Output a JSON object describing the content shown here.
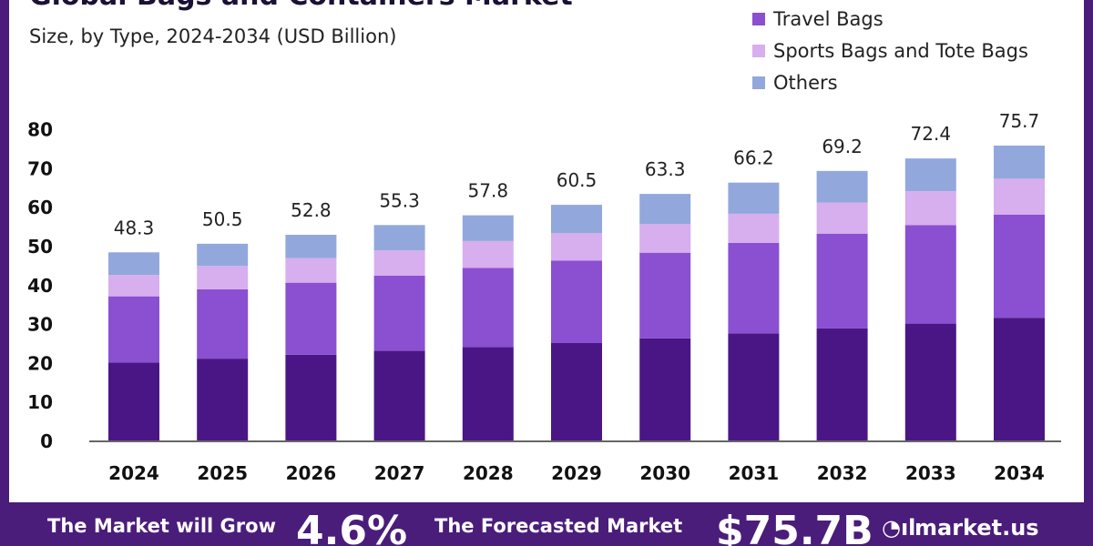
{
  "header": {
    "title": "Global Bags and Containers Market",
    "subtitle": "Size, by Type, 2024-2034 (USD Billion)"
  },
  "footer": {
    "grow_text": "The Market will Grow",
    "cagr": "4.6%",
    "forecast_text": "The Forecasted Market",
    "forecast_value": "$75.7B",
    "logo_icon": "market-us-logo-icon",
    "brand": "market.us"
  },
  "colors": {
    "background": "#ffffff",
    "frame": "#4a1d7a",
    "segment_1": "#4a1685",
    "segment_2": "#8b4fd1",
    "segment_3": "#d7aeee",
    "segment_4": "#92a8dc"
  },
  "chart_data": {
    "type": "bar",
    "stacked": true,
    "categories": [
      "2024",
      "2025",
      "2026",
      "2027",
      "2028",
      "2029",
      "2030",
      "2031",
      "2032",
      "2033",
      "2034"
    ],
    "series": [
      {
        "name": "",
        "values": [
          20.0,
          21.0,
          22.0,
          23.0,
          24.0,
          25.0,
          26.2,
          27.5,
          28.8,
          30.0,
          31.5
        ]
      },
      {
        "name": "Travel Bags",
        "values": [
          17.0,
          17.8,
          18.5,
          19.3,
          20.3,
          21.2,
          22.0,
          23.2,
          24.3,
          25.3,
          26.5
        ]
      },
      {
        "name": "Sports Bags and Tote Bags",
        "values": [
          5.5,
          6.0,
          6.3,
          6.5,
          6.9,
          7.0,
          7.4,
          7.5,
          8.0,
          8.7,
          9.2
        ]
      },
      {
        "name": "Others",
        "values": [
          5.8,
          5.7,
          6.0,
          6.5,
          6.6,
          7.3,
          7.7,
          8.0,
          8.1,
          8.4,
          8.5
        ]
      }
    ],
    "totals": [
      48.3,
      50.5,
      52.8,
      55.3,
      57.8,
      60.5,
      63.3,
      66.2,
      69.2,
      72.4,
      75.7
    ],
    "yticks": [
      0,
      10,
      20,
      30,
      40,
      50,
      60,
      70,
      80
    ],
    "ylim": [
      0,
      80
    ],
    "grid": false,
    "legend_position": "top-right",
    "title": "Global Bags and Containers Market",
    "subtitle": "Size, by Type, 2024-2034 (USD Billion)",
    "xlabel": "",
    "ylabel": ""
  }
}
